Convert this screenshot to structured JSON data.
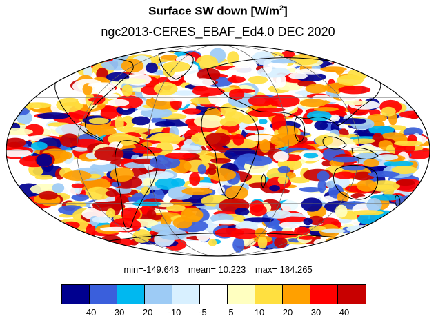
{
  "title": {
    "main": "Surface SW down [W/m",
    "sup": "2",
    "close": "]"
  },
  "subtitle": "ngc2013-CERES_EBAF_Ed4.0  DEC 2020",
  "stats": {
    "min": "min=-149.643",
    "mean": "mean=  10.223",
    "max": "max= 184.265"
  },
  "colorbar": {
    "colors": [
      "#00008f",
      "#3a5fdc",
      "#00b8f0",
      "#9dcbf5",
      "#d8f0ff",
      "#ffffff",
      "#ffffc0",
      "#ffe040",
      "#ffa000",
      "#ff0000",
      "#c80000"
    ],
    "tick_labels": [
      "-40",
      "-30",
      "-20",
      "-10",
      "-5",
      "5",
      "10",
      "20",
      "30",
      "40"
    ]
  },
  "map": {
    "projection": "mollweide",
    "gridlines": true,
    "coastlines": true
  }
}
